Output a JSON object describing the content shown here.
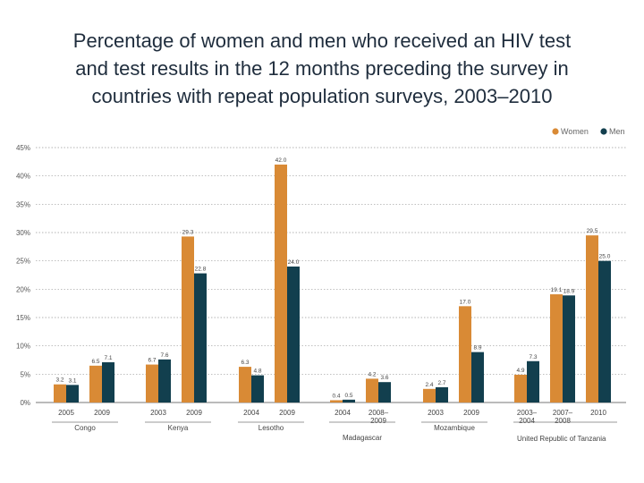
{
  "title_lines": [
    "Percentage of women and men who received an HIV test",
    "and test results in the 12 months preceding the survey in",
    "countries with repeat population surveys, 2003–2010"
  ],
  "colors": {
    "women": "#d98a35",
    "men": "#123f4e",
    "grid": "#9a9a9a",
    "axis": "#777777"
  },
  "chart_data": {
    "type": "bar",
    "title": "Percentage of women and men who received an HIV test and test results in the 12 months preceding the survey in countries with repeat population surveys, 2003–2010",
    "ylim": [
      0,
      45
    ],
    "yticks": [
      {
        "value": 0,
        "label": "0%"
      },
      {
        "value": 5,
        "label": "5%"
      },
      {
        "value": 10,
        "label": "10%"
      },
      {
        "value": 15,
        "label": "15%"
      },
      {
        "value": 20,
        "label": "20%"
      },
      {
        "value": 25,
        "label": "25%"
      },
      {
        "value": 30,
        "label": "30%"
      },
      {
        "value": 35,
        "label": "35%"
      },
      {
        "value": 40,
        "label": "40%"
      },
      {
        "value": 45,
        "label": "45%"
      }
    ],
    "grid": true,
    "legend_position": "top-right",
    "series": [
      {
        "name": "Women",
        "key": "women"
      },
      {
        "name": "Men",
        "key": "men"
      }
    ],
    "groups": [
      {
        "country": "Congo",
        "years": [
          {
            "year": "2005",
            "women": 3.2,
            "men": 3.1,
            "women_label": "3.2",
            "men_label": "3.1"
          },
          {
            "year": "2009",
            "women": 6.5,
            "men": 7.1,
            "women_label": "6.5",
            "men_label": "7.1"
          }
        ]
      },
      {
        "country": "Kenya",
        "years": [
          {
            "year": "2003",
            "women": 6.7,
            "men": 7.6,
            "women_label": "6.7",
            "men_label": "7.6"
          },
          {
            "year": "2009",
            "women": 29.3,
            "men": 22.8,
            "women_label": "29.3",
            "men_label": "22.8"
          }
        ]
      },
      {
        "country": "Lesotho",
        "years": [
          {
            "year": "2004",
            "women": 6.3,
            "men": 4.8,
            "women_label": "6.3",
            "men_label": "4.8"
          },
          {
            "year": "2009",
            "women": 42.0,
            "men": 24.0,
            "women_label": "42.0",
            "men_label": "24.0"
          }
        ]
      },
      {
        "country": "Madagascar",
        "years": [
          {
            "year": "2004",
            "women": 0.4,
            "men": 0.5,
            "women_label": "0.4",
            "men_label": "0.5"
          },
          {
            "year": "2008–\n2009",
            "women": 4.2,
            "men": 3.6,
            "women_label": "4.2",
            "men_label": "3.6"
          }
        ]
      },
      {
        "country": "Mozambique",
        "years": [
          {
            "year": "2003",
            "women": 2.4,
            "men": 2.7,
            "women_label": "2.4",
            "men_label": "2.7"
          },
          {
            "year": "2009",
            "women": 17.0,
            "men": 8.9,
            "women_label": "17.0",
            "men_label": "8.9"
          }
        ]
      },
      {
        "country": "United Republic of Tanzania",
        "years": [
          {
            "year": "2003–\n2004",
            "women": 4.9,
            "men": 7.3,
            "women_label": "4.9",
            "men_label": "7.3"
          },
          {
            "year": "2007–\n2008",
            "women": 19.1,
            "men": 18.9,
            "women_label": "19.1",
            "men_label": "18.9"
          },
          {
            "year": "2010",
            "women": 29.5,
            "men": 25.0,
            "women_label": "29.5",
            "men_label": "25.0"
          }
        ]
      }
    ]
  }
}
